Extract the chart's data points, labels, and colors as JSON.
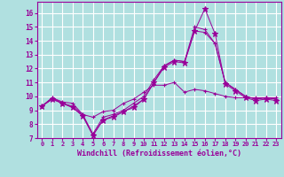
{
  "xlabel": "Windchill (Refroidissement éolien,°C)",
  "bg_color": "#b0e0e0",
  "line_color": "#990099",
  "grid_color": "#ffffff",
  "xlim": [
    -0.5,
    23.5
  ],
  "ylim": [
    7,
    16.8
  ],
  "yticks": [
    7,
    8,
    9,
    10,
    11,
    12,
    13,
    14,
    15,
    16
  ],
  "xticks": [
    0,
    1,
    2,
    3,
    4,
    5,
    6,
    7,
    8,
    9,
    10,
    11,
    12,
    13,
    14,
    15,
    16,
    17,
    18,
    19,
    20,
    21,
    22,
    23
  ],
  "series": [
    [
      9.3,
      9.9,
      9.6,
      9.5,
      8.7,
      8.5,
      8.9,
      9.0,
      9.5,
      9.8,
      10.3,
      10.8,
      10.8,
      11.0,
      10.3,
      10.5,
      10.4,
      10.2,
      10.0,
      9.9,
      9.9,
      9.9,
      9.9,
      9.9
    ],
    [
      9.3,
      9.9,
      9.5,
      9.3,
      8.7,
      7.3,
      8.5,
      8.7,
      9.0,
      9.5,
      10.0,
      11.2,
      12.2,
      12.6,
      12.5,
      15.0,
      14.8,
      13.8,
      11.0,
      10.5,
      10.0,
      9.8,
      9.9,
      9.8
    ],
    [
      9.3,
      9.8,
      9.5,
      9.2,
      8.6,
      7.2,
      8.3,
      8.6,
      8.9,
      9.3,
      9.8,
      11.0,
      12.2,
      12.6,
      12.5,
      14.7,
      14.6,
      13.8,
      11.0,
      10.5,
      10.0,
      9.8,
      9.9,
      9.8
    ],
    [
      9.3,
      9.8,
      9.5,
      9.2,
      8.6,
      7.2,
      8.3,
      8.5,
      8.9,
      9.2,
      9.8,
      11.0,
      12.1,
      12.5,
      12.4,
      14.7,
      16.3,
      14.5,
      10.9,
      10.4,
      9.9,
      9.7,
      9.8,
      9.7
    ]
  ],
  "markers": [
    "+",
    "+",
    "+",
    "*"
  ],
  "linewidths": [
    0.7,
    0.7,
    0.7,
    0.7
  ],
  "markersizes": [
    3.5,
    3.5,
    3.5,
    4.5
  ]
}
